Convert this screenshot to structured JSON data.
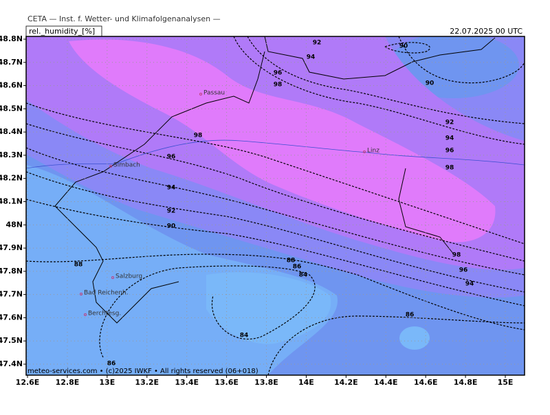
{
  "header": {
    "title": "CETA — Inst. f. Wetter- und Klimafolgenanalysen —",
    "variable": "rel._humidity_[%]",
    "valid_time": "22.07.2025 00 UTC"
  },
  "map": {
    "xticks": [
      {
        "value": 12.6,
        "label": "12.6E"
      },
      {
        "value": 12.8,
        "label": "12.8E"
      },
      {
        "value": 13,
        "label": "13E"
      },
      {
        "value": 13.2,
        "label": "13.2E"
      },
      {
        "value": 13.4,
        "label": "13.4E"
      },
      {
        "value": 13.6,
        "label": "13.6E"
      },
      {
        "value": 13.8,
        "label": "13.8E"
      },
      {
        "value": 14,
        "label": "14E"
      },
      {
        "value": 14.2,
        "label": "14.2E"
      },
      {
        "value": 14.4,
        "label": "14.4E"
      },
      {
        "value": 14.6,
        "label": "14.6E"
      },
      {
        "value": 14.8,
        "label": "14.8E"
      },
      {
        "value": 15,
        "label": "15E"
      }
    ],
    "yticks": [
      {
        "value": 48.8,
        "label": "48.8N"
      },
      {
        "value": 48.7,
        "label": "48.7N"
      },
      {
        "value": 48.6,
        "label": "48.6N"
      },
      {
        "value": 48.5,
        "label": "48.5N"
      },
      {
        "value": 48.4,
        "label": "48.4N"
      },
      {
        "value": 48.3,
        "label": "48.3N"
      },
      {
        "value": 48.2,
        "label": "48.2N"
      },
      {
        "value": 48.1,
        "label": "48.1N"
      },
      {
        "value": 48,
        "label": "48N"
      },
      {
        "value": 47.9,
        "label": "47.9N"
      },
      {
        "value": 47.8,
        "label": "47.8N"
      },
      {
        "value": 47.7,
        "label": "47.7N"
      },
      {
        "value": 47.6,
        "label": "47.6N"
      },
      {
        "value": 47.5,
        "label": "47.5N"
      },
      {
        "value": 47.4,
        "label": "47.4N"
      }
    ],
    "grid": true,
    "cities": [
      "Passau",
      "Linz",
      "Simbach",
      "Salzburg",
      "Bad Reichenh.",
      "Berchtesg."
    ],
    "contour_labels": [
      92,
      94,
      96,
      98,
      90,
      90,
      92,
      94,
      96,
      98,
      98,
      96,
      94,
      92,
      90,
      88,
      88,
      86,
      84,
      98,
      96,
      94,
      86,
      84,
      86
    ]
  },
  "footer": "meteo-services.com • (c)2025 IWKF • All rights reserved (06+018)"
}
